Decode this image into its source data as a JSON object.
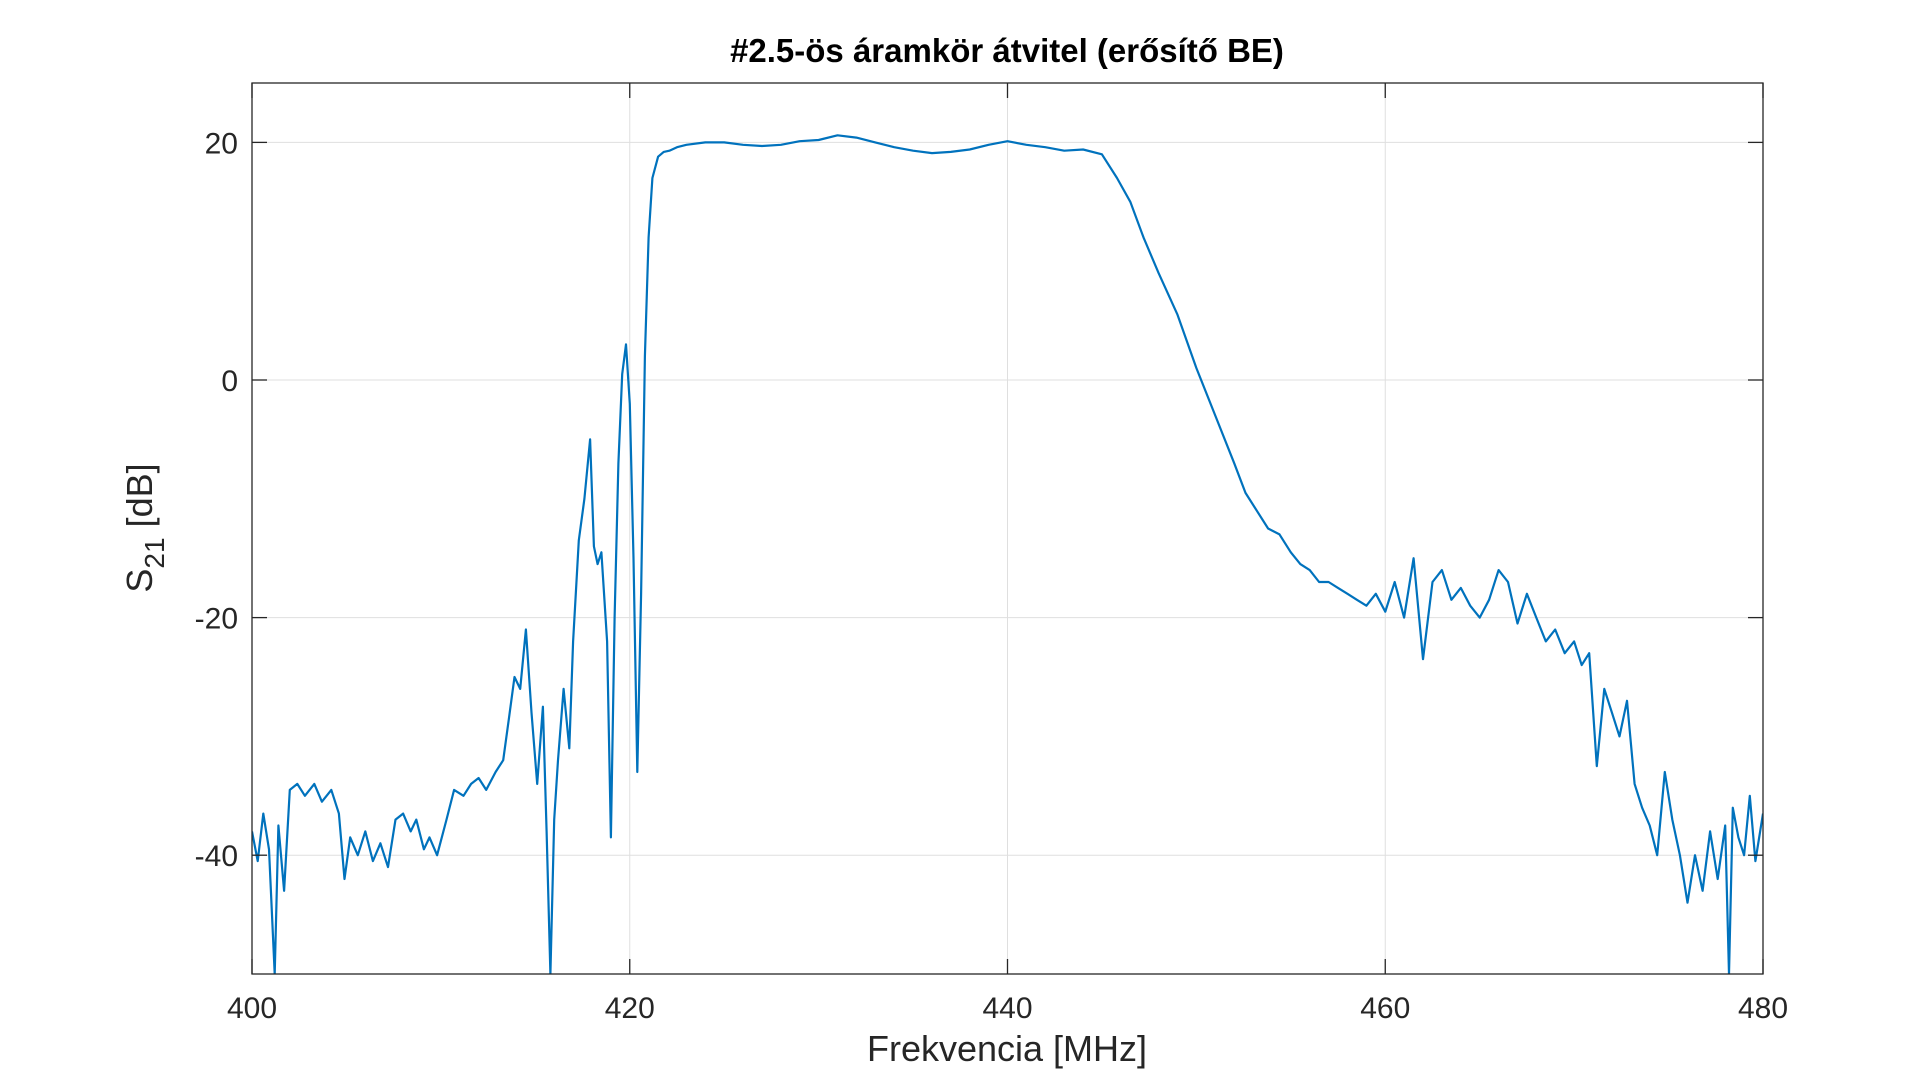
{
  "chart_data": {
    "type": "line",
    "title": "#2.5-ös áramkör átvitel (erősítő BE)",
    "xlabel": "Frekvencia [MHz]",
    "ylabel": {
      "main": "S",
      "sub": "21",
      "unit": "[dB]"
    },
    "xlim": [
      400,
      480
    ],
    "ylim": [
      -50,
      25
    ],
    "xticks": [
      400,
      420,
      440,
      460,
      480
    ],
    "yticks": [
      -40,
      -20,
      0,
      20
    ],
    "xtick_labels": [
      "400",
      "420",
      "440",
      "460",
      "480"
    ],
    "ytick_labels": [
      "-40",
      "-20",
      "0",
      "20"
    ],
    "grid": true,
    "series": [
      {
        "color": "#0072BD",
        "x": [
          400.0,
          400.3,
          400.6,
          400.9,
          401.2,
          401.4,
          401.7,
          402.0,
          402.4,
          402.8,
          403.3,
          403.7,
          404.2,
          404.6,
          404.9,
          405.2,
          405.6,
          406.0,
          406.4,
          406.8,
          407.2,
          407.6,
          408.0,
          408.4,
          408.7,
          409.1,
          409.4,
          409.8,
          410.3,
          410.7,
          411.2,
          411.6,
          412.0,
          412.4,
          412.9,
          413.3,
          413.6,
          413.9,
          414.2,
          414.5,
          414.8,
          415.1,
          415.4,
          415.6,
          415.8,
          416.0,
          416.2,
          416.5,
          416.8,
          417.0,
          417.3,
          417.6,
          417.9,
          418.1,
          418.3,
          418.5,
          418.8,
          419.0,
          419.2,
          419.4,
          419.6,
          419.8,
          420.0,
          420.2,
          420.4,
          420.6,
          420.8,
          421.0,
          421.2,
          421.5,
          421.8,
          422.1,
          422.5,
          423.0,
          424.0,
          425.0,
          426.0,
          427.0,
          428.0,
          429.0,
          430.0,
          431.0,
          432.0,
          433.0,
          434.0,
          435.0,
          436.0,
          437.0,
          438.0,
          439.0,
          440.0,
          441.0,
          442.0,
          443.0,
          444.0,
          445.0,
          445.8,
          446.5,
          447.2,
          448.0,
          449.0,
          450.0,
          451.0,
          452.0,
          452.6,
          453.2,
          453.8,
          454.4,
          455.0,
          455.5,
          456.0,
          456.5,
          457.0,
          457.5,
          458.0,
          458.5,
          459.0,
          459.5,
          460.0,
          460.5,
          461.0,
          461.5,
          462.0,
          462.5,
          463.0,
          463.5,
          464.0,
          464.5,
          465.0,
          465.5,
          466.0,
          466.5,
          467.0,
          467.5,
          468.0,
          468.5,
          469.0,
          469.5,
          470.0,
          470.4,
          470.8,
          471.2,
          471.6,
          472.0,
          472.4,
          472.8,
          473.2,
          473.6,
          474.0,
          474.4,
          474.8,
          475.2,
          475.6,
          476.0,
          476.4,
          476.8,
          477.2,
          477.6,
          478.0,
          478.2,
          478.4,
          478.7,
          479.0,
          479.3,
          479.6,
          480.0
        ],
        "y": [
          -38.0,
          -40.5,
          -36.5,
          -39.5,
          -50.0,
          -37.5,
          -43.0,
          -34.5,
          -34.0,
          -35.0,
          -34.0,
          -35.5,
          -34.5,
          -36.5,
          -42.0,
          -38.5,
          -40.0,
          -38.0,
          -40.5,
          -39.0,
          -41.0,
          -37.0,
          -36.5,
          -38.0,
          -37.0,
          -39.5,
          -38.5,
          -40.0,
          -37.0,
          -34.5,
          -35.0,
          -34.0,
          -33.5,
          -34.5,
          -33.0,
          -32.0,
          -28.5,
          -25.0,
          -26.0,
          -21.0,
          -28.0,
          -34.0,
          -27.5,
          -38.0,
          -50.0,
          -37.0,
          -32.0,
          -26.0,
          -31.0,
          -22.0,
          -13.5,
          -10.0,
          -5.0,
          -14.0,
          -15.5,
          -14.5,
          -22.0,
          -38.5,
          -20.0,
          -7.0,
          0.5,
          3.0,
          -2.0,
          -15.0,
          -33.0,
          -18.0,
          2.0,
          12.0,
          17.0,
          18.8,
          19.2,
          19.3,
          19.6,
          19.8,
          20.0,
          20.0,
          19.8,
          19.7,
          19.8,
          20.1,
          20.2,
          20.6,
          20.4,
          20.0,
          19.6,
          19.3,
          19.1,
          19.2,
          19.4,
          19.8,
          20.1,
          19.8,
          19.6,
          19.3,
          19.4,
          19.0,
          17.0,
          15.0,
          12.0,
          9.0,
          5.5,
          1.0,
          -3.0,
          -7.0,
          -9.5,
          -11.0,
          -12.5,
          -13.0,
          -14.5,
          -15.5,
          -16.0,
          -17.0,
          -17.0,
          -17.5,
          -18.0,
          -18.5,
          -19.0,
          -18.0,
          -19.5,
          -17.0,
          -20.0,
          -15.0,
          -23.5,
          -17.0,
          -16.0,
          -18.5,
          -17.5,
          -19.0,
          -20.0,
          -18.5,
          -16.0,
          -17.0,
          -20.5,
          -18.0,
          -20.0,
          -22.0,
          -21.0,
          -23.0,
          -22.0,
          -24.0,
          -23.0,
          -32.5,
          -26.0,
          -28.0,
          -30.0,
          -27.0,
          -34.0,
          -36.0,
          -37.5,
          -40.0,
          -33.0,
          -37.0,
          -40.0,
          -44.0,
          -40.0,
          -43.0,
          -38.0,
          -42.0,
          -37.5,
          -50.0,
          -36.0,
          -38.5,
          -40.0,
          -35.0,
          -40.5,
          -36.5
        ]
      }
    ]
  }
}
